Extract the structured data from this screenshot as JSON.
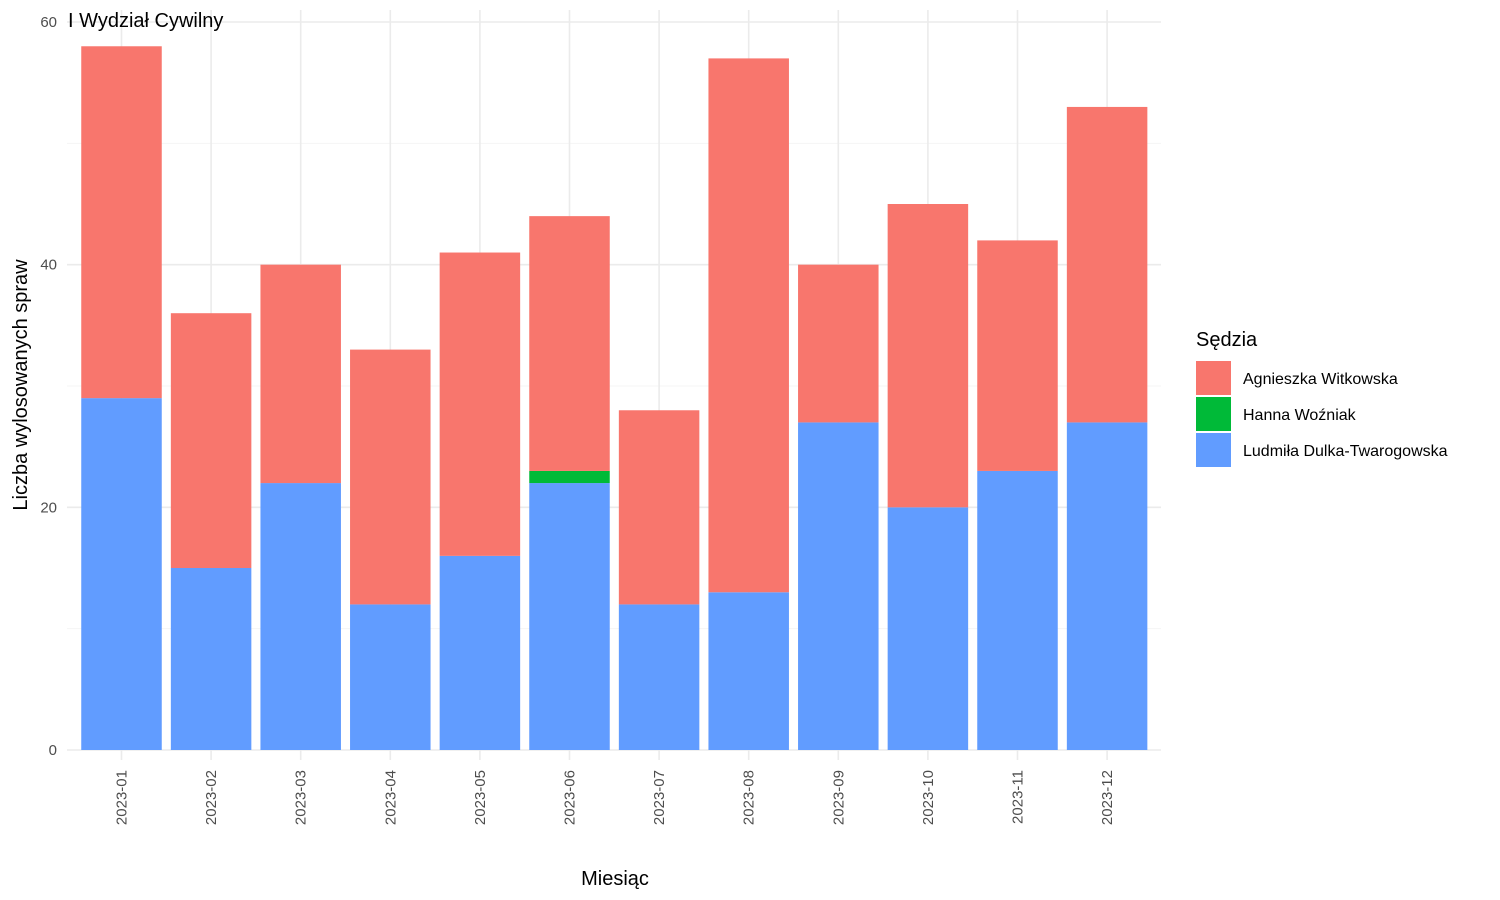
{
  "chart_data": {
    "type": "bar",
    "stacked": true,
    "title": "I Wydział Cywilny",
    "xlabel": "Miesiąc",
    "ylabel": "Liczba wylosowanych spraw",
    "ylim": [
      0,
      60
    ],
    "yticks": [
      0,
      20,
      40,
      60
    ],
    "grid": true,
    "legend_position": "right",
    "legend_title": "Sędzia",
    "categories": [
      "2023-01",
      "2023-02",
      "2023-03",
      "2023-04",
      "2023-05",
      "2023-06",
      "2023-07",
      "2023-08",
      "2023-09",
      "2023-10",
      "2023-11",
      "2023-12"
    ],
    "series": [
      {
        "name": "Ludmiła Dulka-Twarogowska",
        "color": "#619CFF",
        "values": [
          29,
          15,
          22,
          12,
          16,
          22,
          12,
          13,
          27,
          20,
          23,
          27
        ]
      },
      {
        "name": "Hanna Woźniak",
        "color": "#00BA38",
        "values": [
          0,
          0,
          0,
          0,
          0,
          1,
          0,
          0,
          0,
          0,
          0,
          0
        ]
      },
      {
        "name": "Agnieszka Witkowska",
        "color": "#F8766D",
        "values": [
          29,
          21,
          18,
          21,
          25,
          21,
          16,
          44,
          13,
          25,
          19,
          26
        ]
      }
    ],
    "legend_order": [
      "Agnieszka Witkowska",
      "Hanna Woźniak",
      "Ludmiła Dulka-Twarogowska"
    ]
  }
}
